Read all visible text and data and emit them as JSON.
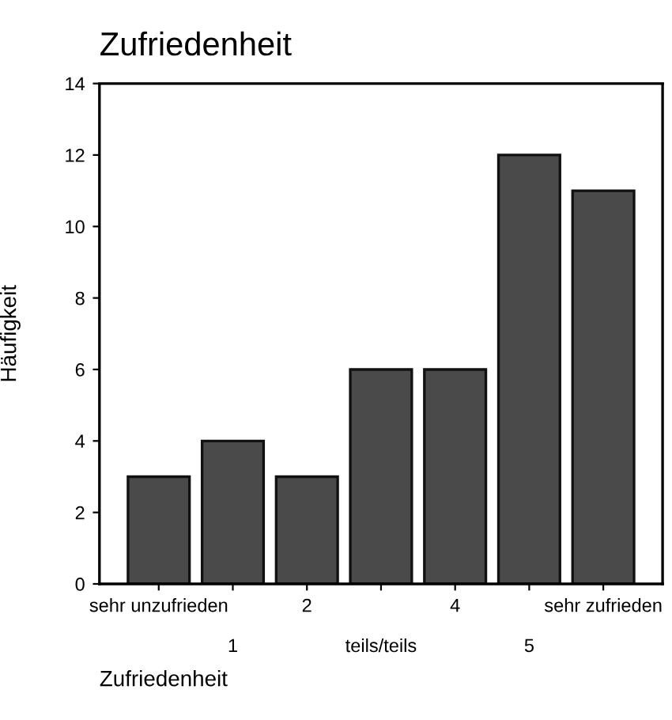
{
  "chart_data": {
    "type": "bar",
    "title": "Zufriedenheit",
    "xlabel": "Zufriedenheit",
    "ylabel": "Häufigkeit",
    "categories": [
      "sehr unzufrieden",
      "1",
      "2",
      "teils/teils",
      "4",
      "5",
      "sehr zufrieden"
    ],
    "values": [
      3,
      4,
      3,
      6,
      6,
      12,
      11
    ],
    "color": "#4a4a4a",
    "ylim": [
      0,
      14
    ],
    "yticks": [
      0,
      2,
      4,
      6,
      8,
      10,
      12,
      14
    ],
    "grid": false,
    "legend": false
  }
}
